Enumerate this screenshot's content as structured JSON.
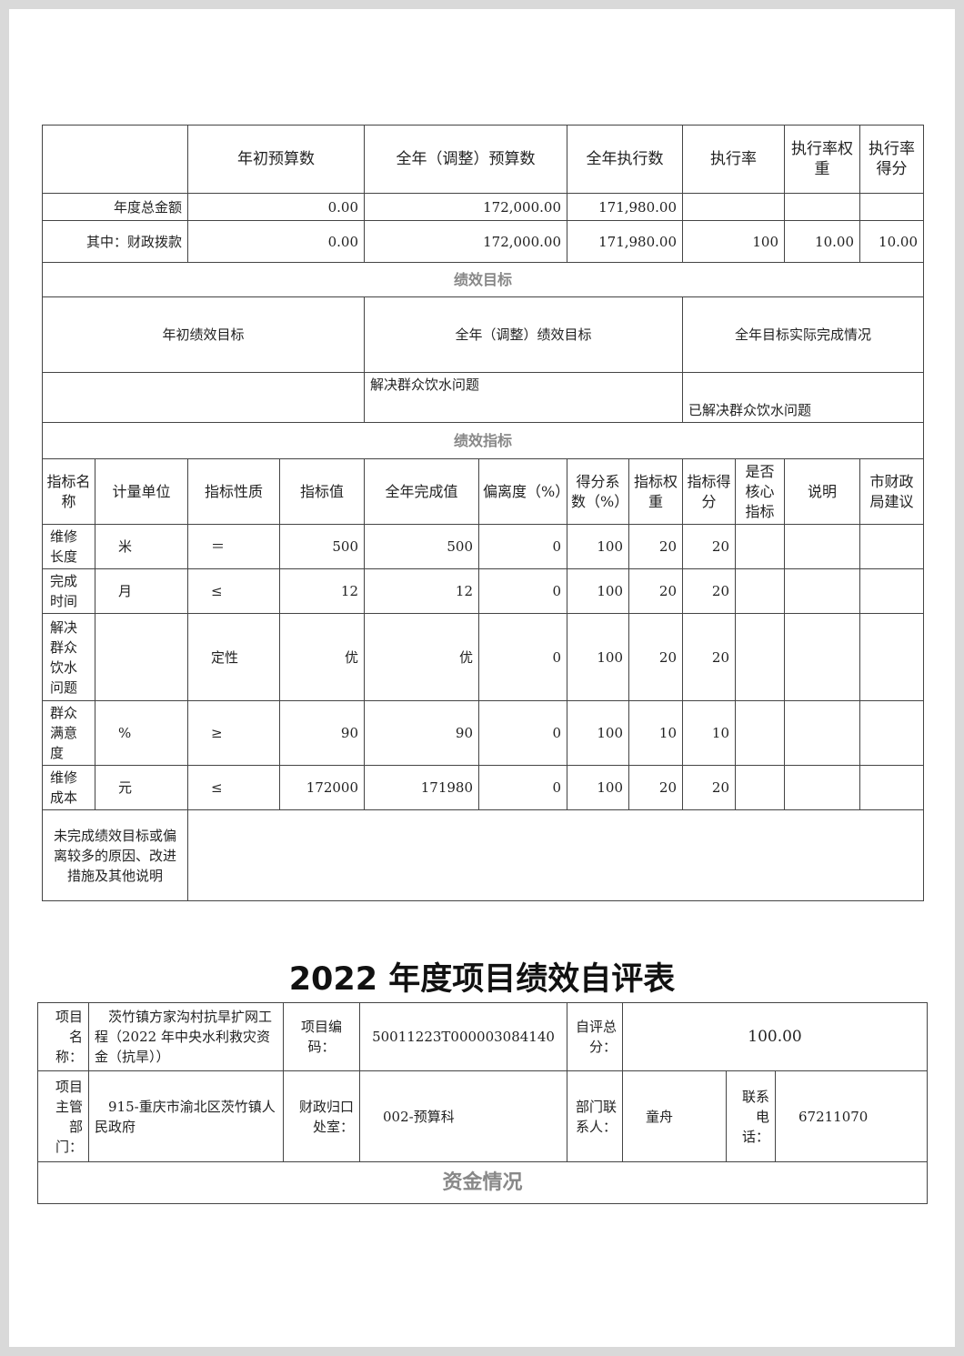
{
  "budget": {
    "headers": [
      "",
      "年初预算数",
      "全年（调整）预算数",
      "全年执行数",
      "执行率",
      "执行率权重",
      "执行率得分"
    ],
    "rows": [
      [
        "年度总金额",
        "0.00",
        "172,000.00",
        "171,980.00",
        "",
        "",
        ""
      ],
      [
        "其中：财政拨款",
        "0.00",
        "172,000.00",
        "171,980.00",
        "100",
        "10.00",
        "10.00"
      ]
    ]
  },
  "goals": {
    "section": "绩效目标",
    "headers": [
      "年初绩效目标",
      "全年（调整）绩效目标",
      "全年目标实际完成情况"
    ],
    "values": [
      "",
      "解决群众饮水问题",
      "已解决群众饮水问题"
    ]
  },
  "indicators": {
    "section": "绩效指标",
    "headers": [
      "指标名称",
      "计量单位",
      "指标性质",
      "指标值",
      "全年完成值",
      "偏离度（%）",
      "得分系数（%）",
      "指标权重",
      "指标得分",
      "是否核心指标",
      "说明",
      "市财政局建议"
    ],
    "rows": [
      [
        "维修长度",
        "米",
        "＝",
        "500",
        "500",
        "0",
        "100",
        "20",
        "20",
        "",
        "",
        ""
      ],
      [
        "完成时间",
        "月",
        "≤",
        "12",
        "12",
        "0",
        "100",
        "20",
        "20",
        "",
        "",
        ""
      ],
      [
        "解决群众饮水问题",
        "",
        "定性",
        "优",
        "优",
        "0",
        "100",
        "20",
        "20",
        "",
        "",
        ""
      ],
      [
        "群众满意度",
        "%",
        "≥",
        "90",
        "90",
        "0",
        "100",
        "10",
        "10",
        "",
        "",
        ""
      ],
      [
        "维修成本",
        "元",
        "≤",
        "172000",
        "171980",
        "0",
        "100",
        "20",
        "20",
        "",
        "",
        ""
      ]
    ],
    "note_label": "未完成绩效目标或偏离较多的原因、改进措施及其他说明",
    "note_value": ""
  },
  "form": {
    "title": "2022 年度项目绩效自评表",
    "project_name_label": "项目名称：",
    "project_name": "茨竹镇方家沟村抗旱扩网工程（2022 年中央水利救灾资金（抗旱））",
    "project_code_label": "项目编码：",
    "project_code": "50011223T000003084140",
    "score_label": "自评总分：",
    "score": "100.00",
    "dept_label": "项目主管部门：",
    "dept": "915-重庆市渝北区茨竹镇人民政府",
    "office_label": "财政归口处室：",
    "office": "002-预算科",
    "contact_label": "部门联系人：",
    "contact": "童舟",
    "phone_label": "联系电话：",
    "phone": "67211070",
    "funds_section": "资金情况"
  }
}
